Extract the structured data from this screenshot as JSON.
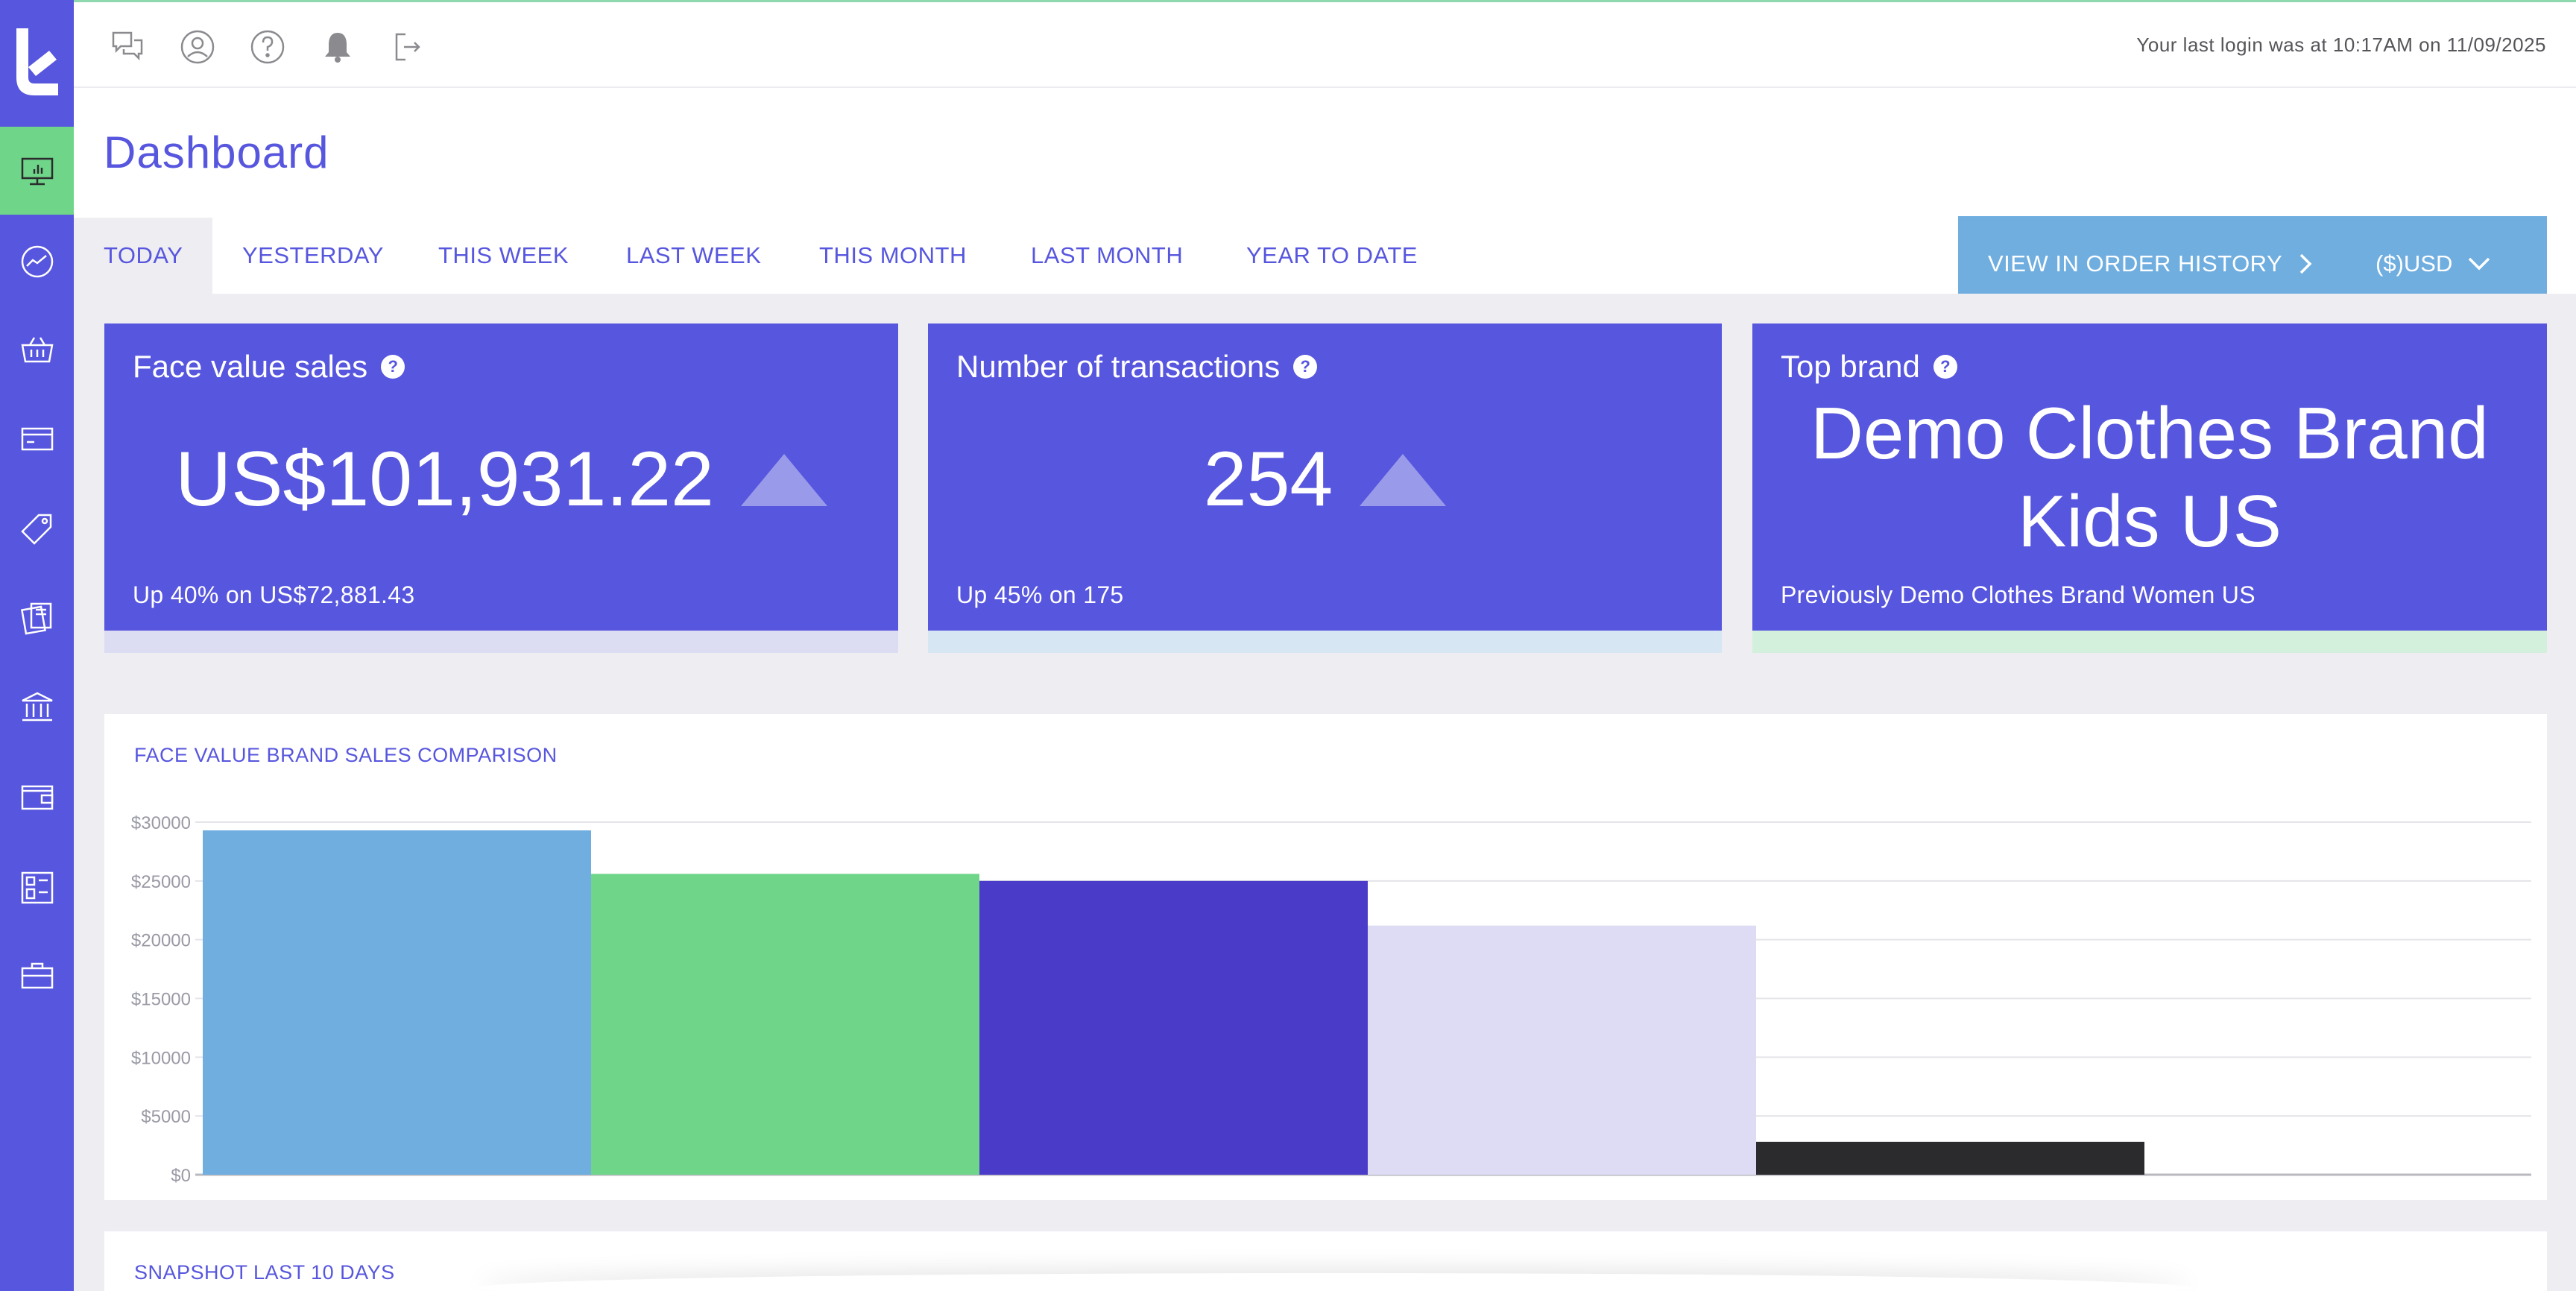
{
  "header": {
    "last_login": "Your last login was at 10:17AM on 11/09/2025"
  },
  "page": {
    "title": "Dashboard"
  },
  "tabs": [
    {
      "label": "TODAY",
      "active": true
    },
    {
      "label": "YESTERDAY",
      "active": false
    },
    {
      "label": "THIS WEEK",
      "active": false
    },
    {
      "label": "LAST WEEK",
      "active": false
    },
    {
      "label": "THIS MONTH",
      "active": false
    },
    {
      "label": "LAST MONTH",
      "active": false
    },
    {
      "label": "YEAR TO DATE",
      "active": false
    }
  ],
  "order_history": {
    "label": "VIEW IN ORDER HISTORY",
    "currency": "($)USD"
  },
  "cards": {
    "sales": {
      "title": "Face value sales",
      "value": "US$101,931.22",
      "sub": "Up 40% on US$72,881.43"
    },
    "transactions": {
      "title": "Number of transactions",
      "value": "254",
      "sub": "Up 45% on 175"
    },
    "brand": {
      "title": "Top brand",
      "value": "Demo Clothes Brand Kids US",
      "sub": "Previously Demo Clothes Brand Women US"
    }
  },
  "chart_panel": {
    "title": "FACE VALUE BRAND SALES COMPARISON"
  },
  "snapshot_panel": {
    "title": "SNAPSHOT LAST 10 DAYS"
  },
  "colors": {
    "primary": "#5756de",
    "accent_green": "#6fd589",
    "accent_blue": "#70aee0"
  },
  "chart_data": {
    "type": "bar",
    "categories": [
      "",
      "",
      "",
      "",
      "",
      ""
    ],
    "values": [
      29300,
      25600,
      25000,
      21200,
      2800,
      0
    ],
    "colors": [
      "#70aee0",
      "#6fd589",
      "#4b3bc9",
      "#dddcf4",
      "#2b2b2e",
      "#ffffff"
    ],
    "yticks": [
      "$0",
      "$5000",
      "$10000",
      "$15000",
      "$20000",
      "$25000",
      "$30000"
    ],
    "ylim": [
      0,
      30000
    ],
    "grid": true,
    "legend": "none"
  }
}
